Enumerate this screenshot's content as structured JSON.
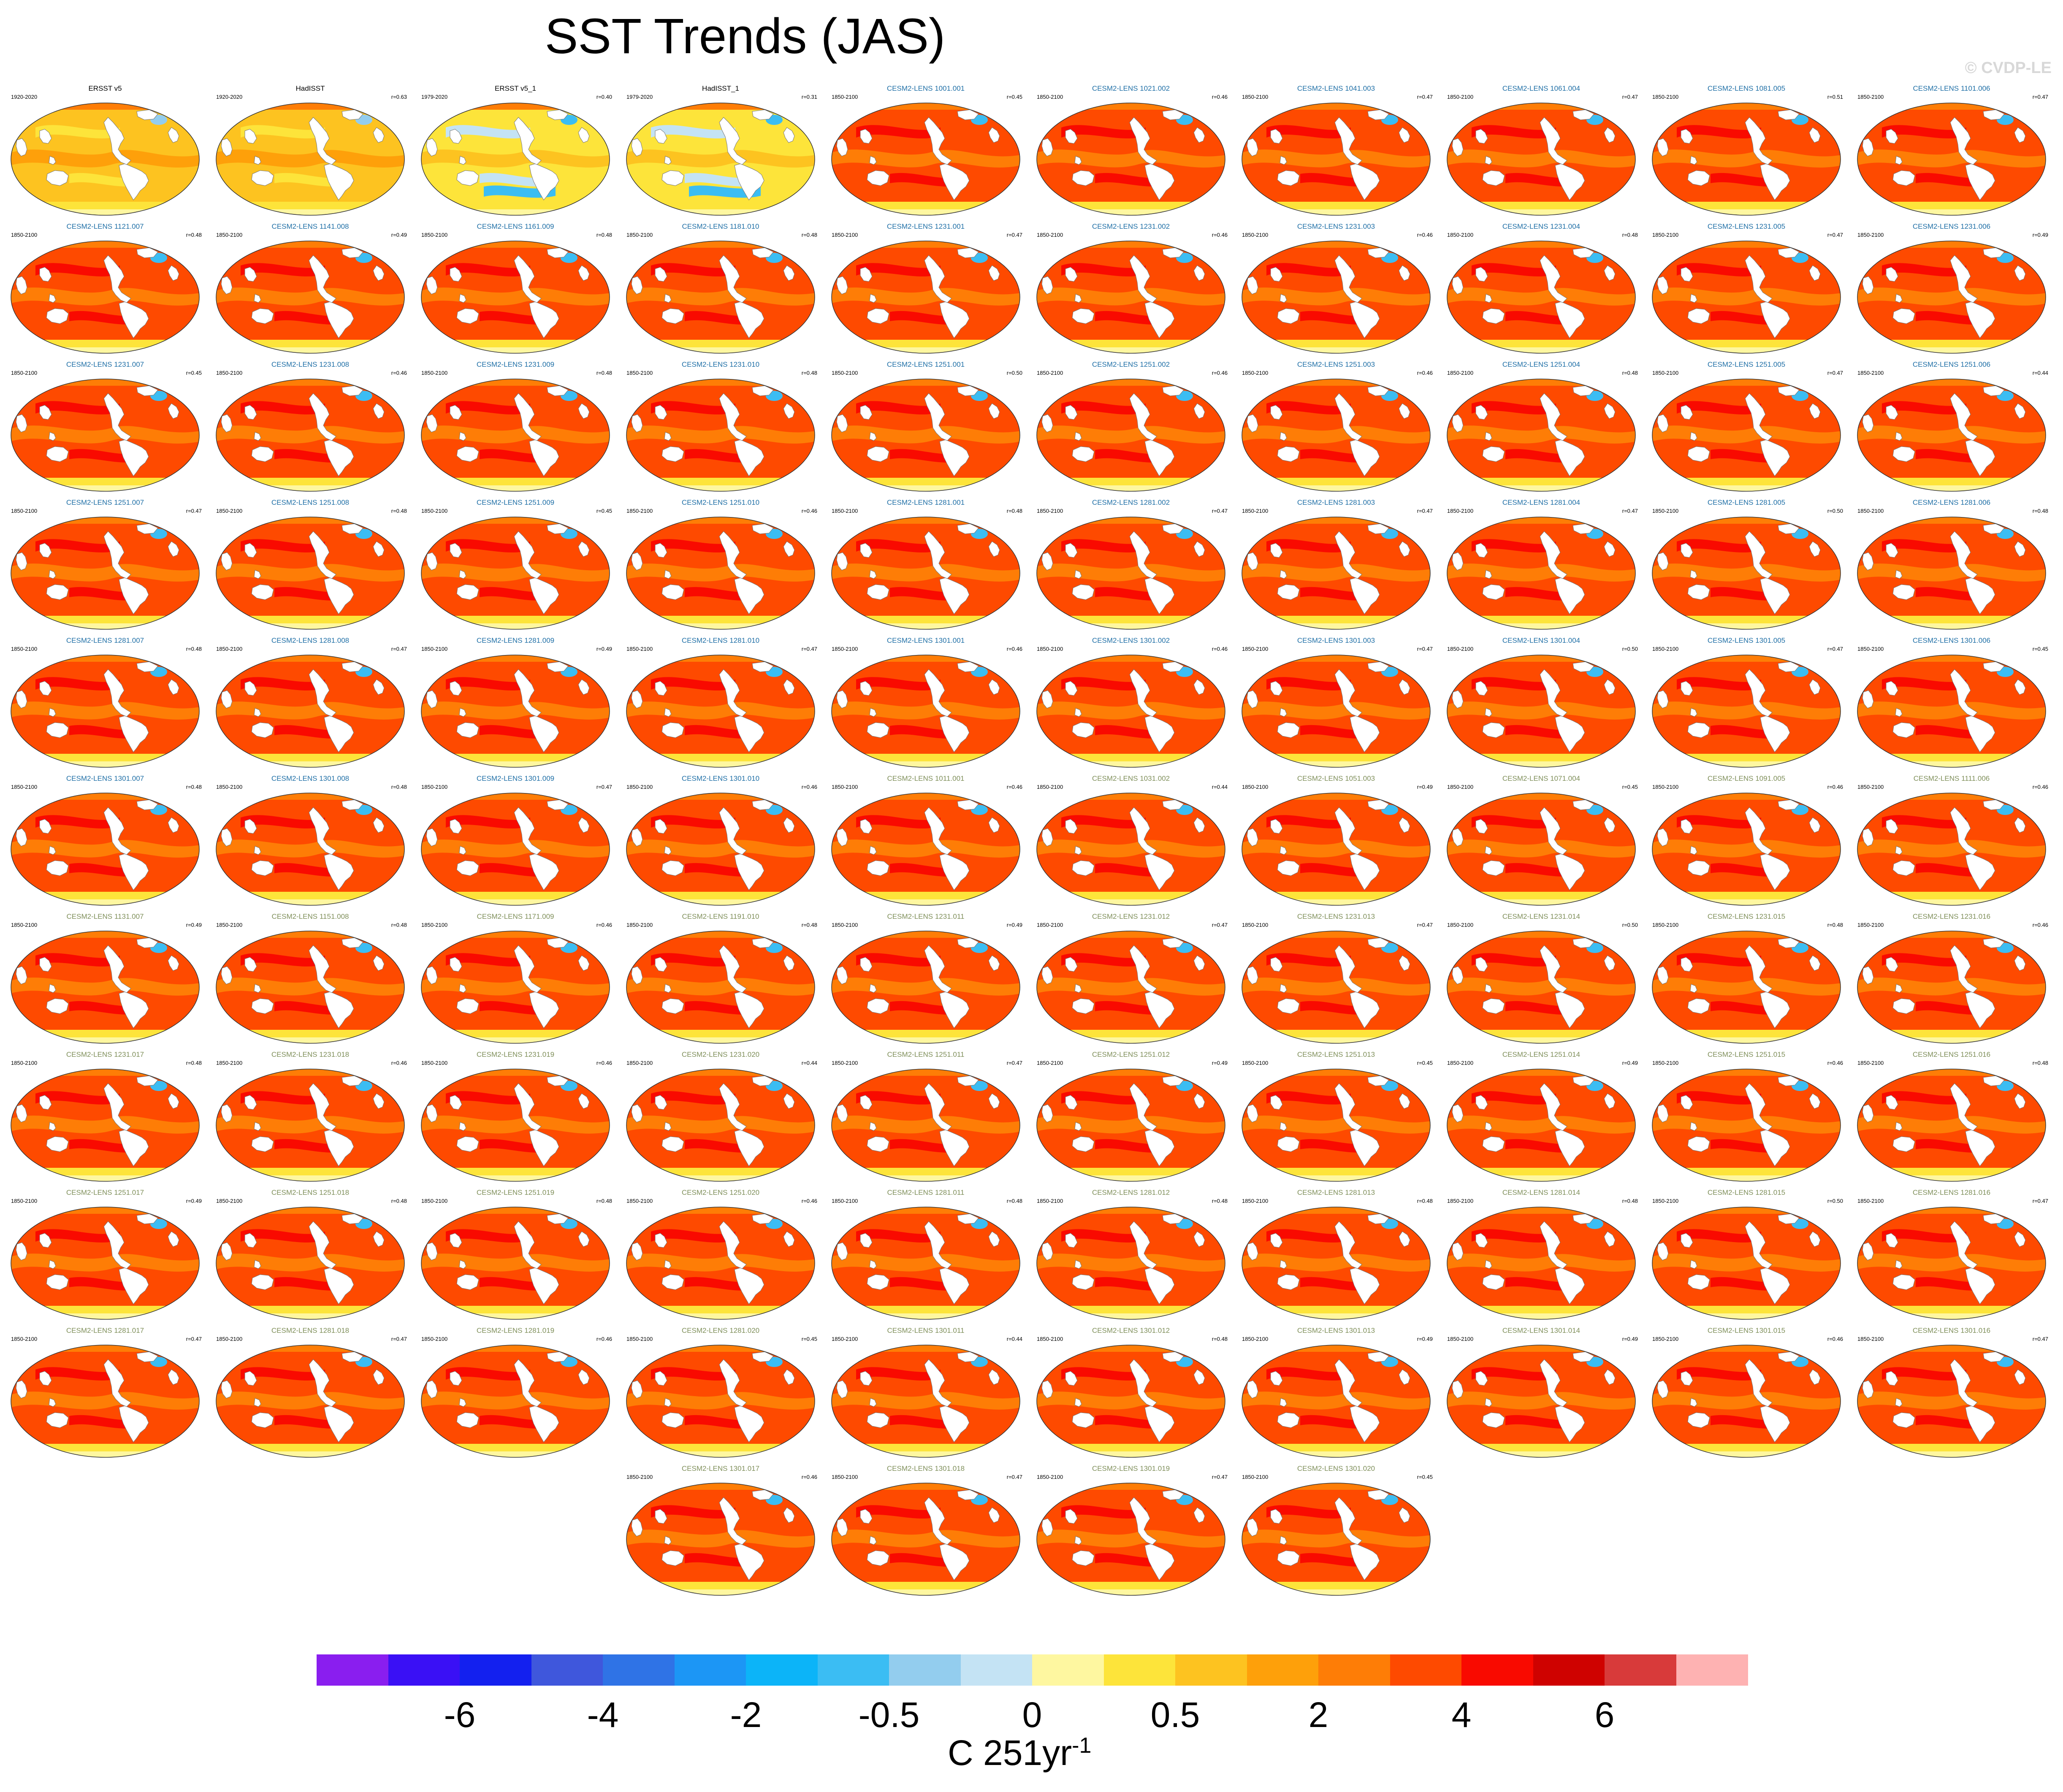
{
  "title": "SST Trends (JAS)",
  "credit": "© CVDP-LE",
  "colors": {
    "obs_title": "#000000",
    "member_title_group1": "#1f6fa6",
    "member_title_group2": "#7f8f5a"
  },
  "panels": [
    {
      "title": "ERSST v5",
      "period": "1920-2020",
      "r": "",
      "style": "obs"
    },
    {
      "title": "HadISST",
      "period": "1920-2020",
      "r": "r=0.63",
      "style": "obs"
    },
    {
      "title": "ERSST v5_1",
      "period": "1979-2020",
      "r": "r=0.40",
      "style": "obs-recent"
    },
    {
      "title": "HadISST_1",
      "period": "1979-2020",
      "r": "r=0.31",
      "style": "obs-recent"
    },
    {
      "title": "CESM2-LENS 1001.001",
      "period": "1850-2100",
      "r": "r=0.45",
      "style": "member"
    },
    {
      "title": "CESM2-LENS 1021.002",
      "period": "1850-2100",
      "r": "r=0.46",
      "style": "member"
    },
    {
      "title": "CESM2-LENS 1041.003",
      "period": "1850-2100",
      "r": "r=0.47",
      "style": "member"
    },
    {
      "title": "CESM2-LENS 1061.004",
      "period": "1850-2100",
      "r": "r=0.47",
      "style": "member"
    },
    {
      "title": "CESM2-LENS 1081.005",
      "period": "1850-2100",
      "r": "r=0.51",
      "style": "member"
    },
    {
      "title": "CESM2-LENS 1101.006",
      "period": "1850-2100",
      "r": "r=0.47",
      "style": "member"
    },
    {
      "title": "CESM2-LENS 1121.007",
      "period": "1850-2100",
      "r": "r=0.48",
      "style": "member"
    },
    {
      "title": "CESM2-LENS 1141.008",
      "period": "1850-2100",
      "r": "r=0.49",
      "style": "member"
    },
    {
      "title": "CESM2-LENS 1161.009",
      "period": "1850-2100",
      "r": "r=0.48",
      "style": "member"
    },
    {
      "title": "CESM2-LENS 1181.010",
      "period": "1850-2100",
      "r": "r=0.48",
      "style": "member"
    },
    {
      "title": "CESM2-LENS 1231.001",
      "period": "1850-2100",
      "r": "r=0.47",
      "style": "member"
    },
    {
      "title": "CESM2-LENS 1231.002",
      "period": "1850-2100",
      "r": "r=0.46",
      "style": "member"
    },
    {
      "title": "CESM2-LENS 1231.003",
      "period": "1850-2100",
      "r": "r=0.46",
      "style": "member"
    },
    {
      "title": "CESM2-LENS 1231.004",
      "period": "1850-2100",
      "r": "r=0.48",
      "style": "member"
    },
    {
      "title": "CESM2-LENS 1231.005",
      "period": "1850-2100",
      "r": "r=0.47",
      "style": "member"
    },
    {
      "title": "CESM2-LENS 1231.006",
      "period": "1850-2100",
      "r": "r=0.49",
      "style": "member"
    },
    {
      "title": "CESM2-LENS 1231.007",
      "period": "1850-2100",
      "r": "r=0.45",
      "style": "member"
    },
    {
      "title": "CESM2-LENS 1231.008",
      "period": "1850-2100",
      "r": "r=0.46",
      "style": "member"
    },
    {
      "title": "CESM2-LENS 1231.009",
      "period": "1850-2100",
      "r": "r=0.48",
      "style": "member"
    },
    {
      "title": "CESM2-LENS 1231.010",
      "period": "1850-2100",
      "r": "r=0.48",
      "style": "member"
    },
    {
      "title": "CESM2-LENS 1251.001",
      "period": "1850-2100",
      "r": "r=0.50",
      "style": "member"
    },
    {
      "title": "CESM2-LENS 1251.002",
      "period": "1850-2100",
      "r": "r=0.46",
      "style": "member"
    },
    {
      "title": "CESM2-LENS 1251.003",
      "period": "1850-2100",
      "r": "r=0.46",
      "style": "member"
    },
    {
      "title": "CESM2-LENS 1251.004",
      "period": "1850-2100",
      "r": "r=0.48",
      "style": "member"
    },
    {
      "title": "CESM2-LENS 1251.005",
      "period": "1850-2100",
      "r": "r=0.47",
      "style": "member"
    },
    {
      "title": "CESM2-LENS 1251.006",
      "period": "1850-2100",
      "r": "r=0.44",
      "style": "member"
    },
    {
      "title": "CESM2-LENS 1251.007",
      "period": "1850-2100",
      "r": "r=0.47",
      "style": "member"
    },
    {
      "title": "CESM2-LENS 1251.008",
      "period": "1850-2100",
      "r": "r=0.48",
      "style": "member"
    },
    {
      "title": "CESM2-LENS 1251.009",
      "period": "1850-2100",
      "r": "r=0.45",
      "style": "member"
    },
    {
      "title": "CESM2-LENS 1251.010",
      "period": "1850-2100",
      "r": "r=0.46",
      "style": "member"
    },
    {
      "title": "CESM2-LENS 1281.001",
      "period": "1850-2100",
      "r": "r=0.48",
      "style": "member"
    },
    {
      "title": "CESM2-LENS 1281.002",
      "period": "1850-2100",
      "r": "r=0.47",
      "style": "member"
    },
    {
      "title": "CESM2-LENS 1281.003",
      "period": "1850-2100",
      "r": "r=0.47",
      "style": "member"
    },
    {
      "title": "CESM2-LENS 1281.004",
      "period": "1850-2100",
      "r": "r=0.47",
      "style": "member"
    },
    {
      "title": "CESM2-LENS 1281.005",
      "period": "1850-2100",
      "r": "r=0.50",
      "style": "member"
    },
    {
      "title": "CESM2-LENS 1281.006",
      "period": "1850-2100",
      "r": "r=0.48",
      "style": "member"
    },
    {
      "title": "CESM2-LENS 1281.007",
      "period": "1850-2100",
      "r": "r=0.48",
      "style": "member"
    },
    {
      "title": "CESM2-LENS 1281.008",
      "period": "1850-2100",
      "r": "r=0.47",
      "style": "member"
    },
    {
      "title": "CESM2-LENS 1281.009",
      "period": "1850-2100",
      "r": "r=0.49",
      "style": "member"
    },
    {
      "title": "CESM2-LENS 1281.010",
      "period": "1850-2100",
      "r": "r=0.47",
      "style": "member"
    },
    {
      "title": "CESM2-LENS 1301.001",
      "period": "1850-2100",
      "r": "r=0.46",
      "style": "member"
    },
    {
      "title": "CESM2-LENS 1301.002",
      "period": "1850-2100",
      "r": "r=0.46",
      "style": "member"
    },
    {
      "title": "CESM2-LENS 1301.003",
      "period": "1850-2100",
      "r": "r=0.47",
      "style": "member"
    },
    {
      "title": "CESM2-LENS 1301.004",
      "period": "1850-2100",
      "r": "r=0.50",
      "style": "member"
    },
    {
      "title": "CESM2-LENS 1301.005",
      "period": "1850-2100",
      "r": "r=0.47",
      "style": "member"
    },
    {
      "title": "CESM2-LENS 1301.006",
      "period": "1850-2100",
      "r": "r=0.45",
      "style": "member"
    },
    {
      "title": "CESM2-LENS 1301.007",
      "period": "1850-2100",
      "r": "r=0.48",
      "style": "member"
    },
    {
      "title": "CESM2-LENS 1301.008",
      "period": "1850-2100",
      "r": "r=0.48",
      "style": "member"
    },
    {
      "title": "CESM2-LENS 1301.009",
      "period": "1850-2100",
      "r": "r=0.47",
      "style": "member"
    },
    {
      "title": "CESM2-LENS 1301.010",
      "period": "1850-2100",
      "r": "r=0.46",
      "style": "member"
    },
    {
      "title": "CESM2-LENS 1011.001",
      "period": "1850-2100",
      "r": "r=0.46",
      "style": "member2"
    },
    {
      "title": "CESM2-LENS 1031.002",
      "period": "1850-2100",
      "r": "r=0.44",
      "style": "member2"
    },
    {
      "title": "CESM2-LENS 1051.003",
      "period": "1850-2100",
      "r": "r=0.49",
      "style": "member2"
    },
    {
      "title": "CESM2-LENS 1071.004",
      "period": "1850-2100",
      "r": "r=0.45",
      "style": "member2"
    },
    {
      "title": "CESM2-LENS 1091.005",
      "period": "1850-2100",
      "r": "r=0.46",
      "style": "member2"
    },
    {
      "title": "CESM2-LENS 1111.006",
      "period": "1850-2100",
      "r": "r=0.46",
      "style": "member2"
    },
    {
      "title": "CESM2-LENS 1131.007",
      "period": "1850-2100",
      "r": "r=0.49",
      "style": "member2"
    },
    {
      "title": "CESM2-LENS 1151.008",
      "period": "1850-2100",
      "r": "r=0.48",
      "style": "member2"
    },
    {
      "title": "CESM2-LENS 1171.009",
      "period": "1850-2100",
      "r": "r=0.46",
      "style": "member2"
    },
    {
      "title": "CESM2-LENS 1191.010",
      "period": "1850-2100",
      "r": "r=0.48",
      "style": "member2"
    },
    {
      "title": "CESM2-LENS 1231.011",
      "period": "1850-2100",
      "r": "r=0.49",
      "style": "member2"
    },
    {
      "title": "CESM2-LENS 1231.012",
      "period": "1850-2100",
      "r": "r=0.47",
      "style": "member2"
    },
    {
      "title": "CESM2-LENS 1231.013",
      "period": "1850-2100",
      "r": "r=0.47",
      "style": "member2"
    },
    {
      "title": "CESM2-LENS 1231.014",
      "period": "1850-2100",
      "r": "r=0.50",
      "style": "member2"
    },
    {
      "title": "CESM2-LENS 1231.015",
      "period": "1850-2100",
      "r": "r=0.48",
      "style": "member2"
    },
    {
      "title": "CESM2-LENS 1231.016",
      "period": "1850-2100",
      "r": "r=0.46",
      "style": "member2"
    },
    {
      "title": "CESM2-LENS 1231.017",
      "period": "1850-2100",
      "r": "r=0.48",
      "style": "member2"
    },
    {
      "title": "CESM2-LENS 1231.018",
      "period": "1850-2100",
      "r": "r=0.46",
      "style": "member2"
    },
    {
      "title": "CESM2-LENS 1231.019",
      "period": "1850-2100",
      "r": "r=0.46",
      "style": "member2"
    },
    {
      "title": "CESM2-LENS 1231.020",
      "period": "1850-2100",
      "r": "r=0.44",
      "style": "member2"
    },
    {
      "title": "CESM2-LENS 1251.011",
      "period": "1850-2100",
      "r": "r=0.47",
      "style": "member2"
    },
    {
      "title": "CESM2-LENS 1251.012",
      "period": "1850-2100",
      "r": "r=0.49",
      "style": "member2"
    },
    {
      "title": "CESM2-LENS 1251.013",
      "period": "1850-2100",
      "r": "r=0.45",
      "style": "member2"
    },
    {
      "title": "CESM2-LENS 1251.014",
      "period": "1850-2100",
      "r": "r=0.49",
      "style": "member2"
    },
    {
      "title": "CESM2-LENS 1251.015",
      "period": "1850-2100",
      "r": "r=0.46",
      "style": "member2"
    },
    {
      "title": "CESM2-LENS 1251.016",
      "period": "1850-2100",
      "r": "r=0.48",
      "style": "member2"
    },
    {
      "title": "CESM2-LENS 1251.017",
      "period": "1850-2100",
      "r": "r=0.49",
      "style": "member2"
    },
    {
      "title": "CESM2-LENS 1251.018",
      "period": "1850-2100",
      "r": "r=0.48",
      "style": "member2"
    },
    {
      "title": "CESM2-LENS 1251.019",
      "period": "1850-2100",
      "r": "r=0.48",
      "style": "member2"
    },
    {
      "title": "CESM2-LENS 1251.020",
      "period": "1850-2100",
      "r": "r=0.46",
      "style": "member2"
    },
    {
      "title": "CESM2-LENS 1281.011",
      "period": "1850-2100",
      "r": "r=0.48",
      "style": "member2"
    },
    {
      "title": "CESM2-LENS 1281.012",
      "period": "1850-2100",
      "r": "r=0.48",
      "style": "member2"
    },
    {
      "title": "CESM2-LENS 1281.013",
      "period": "1850-2100",
      "r": "r=0.48",
      "style": "member2"
    },
    {
      "title": "CESM2-LENS 1281.014",
      "period": "1850-2100",
      "r": "r=0.48",
      "style": "member2"
    },
    {
      "title": "CESM2-LENS 1281.015",
      "period": "1850-2100",
      "r": "r=0.50",
      "style": "member2"
    },
    {
      "title": "CESM2-LENS 1281.016",
      "period": "1850-2100",
      "r": "r=0.47",
      "style": "member2"
    },
    {
      "title": "CESM2-LENS 1281.017",
      "period": "1850-2100",
      "r": "r=0.47",
      "style": "member2"
    },
    {
      "title": "CESM2-LENS 1281.018",
      "period": "1850-2100",
      "r": "r=0.47",
      "style": "member2"
    },
    {
      "title": "CESM2-LENS 1281.019",
      "period": "1850-2100",
      "r": "r=0.46",
      "style": "member2"
    },
    {
      "title": "CESM2-LENS 1281.020",
      "period": "1850-2100",
      "r": "r=0.45",
      "style": "member2"
    },
    {
      "title": "CESM2-LENS 1301.011",
      "period": "1850-2100",
      "r": "r=0.44",
      "style": "member2"
    },
    {
      "title": "CESM2-LENS 1301.012",
      "period": "1850-2100",
      "r": "r=0.48",
      "style": "member2"
    },
    {
      "title": "CESM2-LENS 1301.013",
      "period": "1850-2100",
      "r": "r=0.49",
      "style": "member2"
    },
    {
      "title": "CESM2-LENS 1301.014",
      "period": "1850-2100",
      "r": "r=0.49",
      "style": "member2"
    },
    {
      "title": "CESM2-LENS 1301.015",
      "period": "1850-2100",
      "r": "r=0.46",
      "style": "member2"
    },
    {
      "title": "CESM2-LENS 1301.016",
      "period": "1850-2100",
      "r": "r=0.47",
      "style": "member2"
    },
    {
      "title": "CESM2-LENS 1301.017",
      "period": "1850-2100",
      "r": "r=0.46",
      "style": "member2"
    },
    {
      "title": "CESM2-LENS 1301.018",
      "period": "1850-2100",
      "r": "r=0.47",
      "style": "member2"
    },
    {
      "title": "CESM2-LENS 1301.019",
      "period": "1850-2100",
      "r": "r=0.47",
      "style": "member2"
    },
    {
      "title": "CESM2-LENS 1301.020",
      "period": "1850-2100",
      "r": "r=0.45",
      "style": "member2"
    }
  ],
  "colorbar": {
    "colors": [
      "#8a1eef",
      "#3a10f5",
      "#1320ef",
      "#3f57dc",
      "#2f73e6",
      "#1c96f5",
      "#0cb4f8",
      "#3bbdf3",
      "#93cdee",
      "#c4e3f4",
      "#fef7a0",
      "#fde43a",
      "#fdc320",
      "#fea00a",
      "#fe7d06",
      "#fe4a00",
      "#f90a00",
      "#cf0200",
      "#d83a3a",
      "#feb2b2"
    ],
    "tick_labels": [
      "-6",
      "-4",
      "-2",
      "-0.5",
      "0",
      "0.5",
      "2",
      "4",
      "6"
    ],
    "units_base": "C 251yr",
    "units_exponent": "-1"
  }
}
